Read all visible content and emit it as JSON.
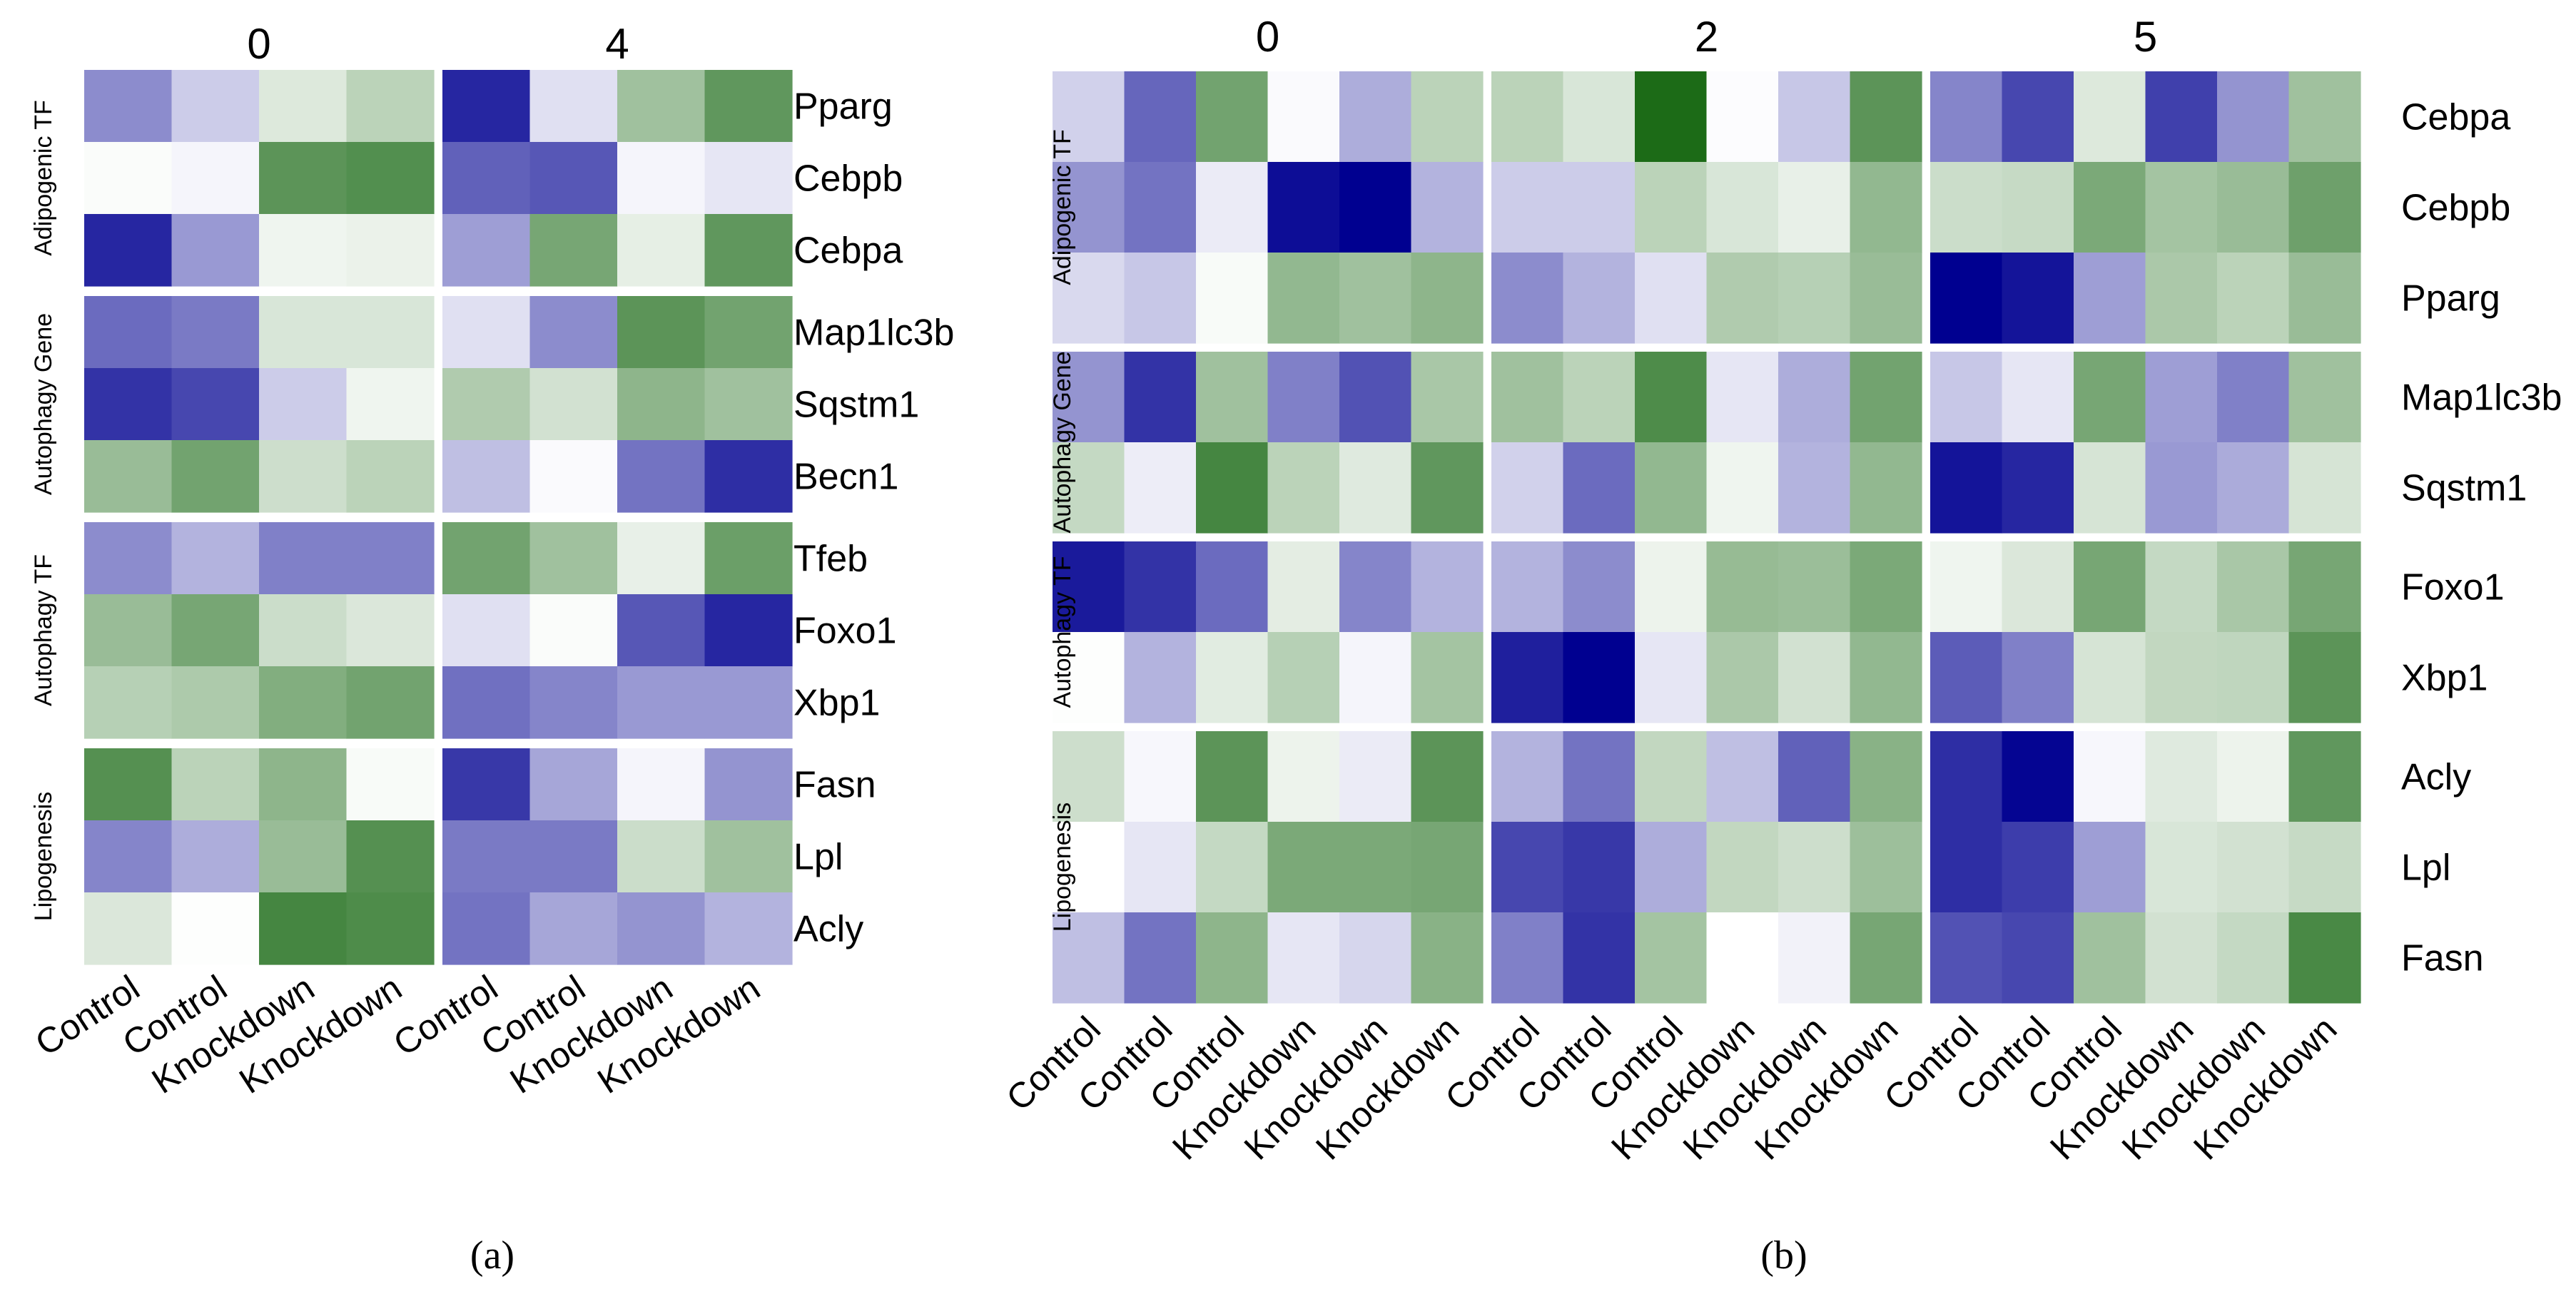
{
  "colors": {
    "low": "#000090",
    "mid": "#ffffff",
    "high": "#1c6b17",
    "separator": "#ffffff"
  },
  "chart_data": [
    {
      "type": "heatmap",
      "id": "a",
      "caption": "(a)",
      "title": "",
      "timepoints": [
        "0",
        "4"
      ],
      "columns": [
        "Control",
        "Control",
        "Knockdown",
        "Knockdown"
      ],
      "groups": [
        {
          "name": "Adipogenic TF",
          "genes": [
            "Pparg",
            "Cebpb",
            "Cebpa"
          ]
        },
        {
          "name": "Autophagy Gene",
          "genes": [
            "Map1lc3b",
            "Sqstm1",
            "Becn1"
          ]
        },
        {
          "name": "Autophagy TF",
          "genes": [
            "Tfeb",
            "Foxo1",
            "Xbp1"
          ]
        },
        {
          "name": "Lipogenesis",
          "genes": [
            "Fasn",
            "Lpl",
            "Acly"
          ]
        }
      ],
      "value_range": [
        -1,
        1
      ],
      "values": [
        [
          [
            -0.45,
            -0.2,
            0.15,
            0.3
          ],
          [
            -0.85,
            -0.12,
            0.42,
            0.7
          ]
        ],
        [
          [
            0.02,
            -0.04,
            0.72,
            0.76
          ],
          [
            -0.62,
            -0.66,
            -0.04,
            -0.1
          ]
        ],
        [
          [
            -0.85,
            -0.4,
            0.07,
            0.09
          ],
          [
            -0.38,
            0.6,
            0.11,
            0.7
          ]
        ],
        [
          [
            -0.58,
            -0.52,
            0.17,
            0.17
          ],
          [
            -0.12,
            -0.45,
            0.72,
            0.62
          ]
        ],
        [
          [
            -0.8,
            -0.72,
            -0.2,
            0.07
          ],
          [
            0.35,
            0.2,
            0.5,
            0.42
          ]
        ],
        [
          [
            0.45,
            0.62,
            0.22,
            0.3
          ],
          [
            -0.25,
            -0.02,
            -0.55,
            -0.82
          ]
        ],
        [
          [
            -0.45,
            -0.3,
            -0.5,
            -0.5
          ],
          [
            0.62,
            0.42,
            0.1,
            0.65
          ]
        ],
        [
          [
            0.45,
            0.6,
            0.23,
            0.16
          ],
          [
            -0.12,
            0.02,
            -0.66,
            -0.85
          ]
        ],
        [
          [
            0.32,
            0.36,
            0.55,
            0.62
          ],
          [
            -0.56,
            -0.48,
            -0.4,
            -0.4
          ]
        ],
        [
          [
            0.75,
            0.3,
            0.5,
            0.03
          ],
          [
            -0.78,
            -0.35,
            -0.04,
            -0.42
          ]
        ],
        [
          [
            -0.48,
            -0.32,
            0.45,
            0.75
          ],
          [
            -0.52,
            -0.52,
            0.23,
            0.42
          ]
        ],
        [
          [
            0.16,
            0.01,
            0.82,
            0.78
          ],
          [
            -0.55,
            -0.35,
            -0.42,
            -0.3
          ]
        ]
      ]
    },
    {
      "type": "heatmap",
      "id": "b",
      "caption": "(b)",
      "title": "",
      "timepoints": [
        "0",
        "2",
        "5"
      ],
      "columns": [
        "Control",
        "Control",
        "Control",
        "Knockdown",
        "Knockdown",
        "Knockdown"
      ],
      "groups": [
        {
          "name": "Adipogenic TF",
          "genes": [
            "Cebpa",
            "Cebpb",
            "Pparg"
          ]
        },
        {
          "name": "Autophagy Gene",
          "genes": [
            "Map1lc3b",
            "Sqstm1"
          ]
        },
        {
          "name": "Autophagy TF",
          "genes": [
            "Foxo1",
            "Xbp1"
          ]
        },
        {
          "name": "Lipogenesis",
          "genes": [
            "Acly",
            "Lpl",
            "Fasn"
          ]
        }
      ],
      "value_range": [
        -1,
        1
      ],
      "values": [
        [
          [
            -0.18,
            -0.6,
            0.62,
            -0.02,
            -0.32,
            0.3
          ],
          [
            0.3,
            0.17,
            1.0,
            -0.01,
            -0.22,
            0.72
          ],
          [
            -0.48,
            -0.72,
            0.15,
            -0.75,
            -0.42,
            0.42
          ]
        ],
        [
          [
            -0.42,
            -0.55,
            -0.08,
            -0.95,
            -1.0,
            -0.3
          ],
          [
            -0.2,
            -0.2,
            0.3,
            0.17,
            0.1,
            0.48
          ],
          [
            0.23,
            0.25,
            0.58,
            0.4,
            0.45,
            0.64
          ]
        ],
        [
          [
            -0.15,
            -0.22,
            0.03,
            0.48,
            0.42,
            0.5
          ],
          [
            -0.45,
            -0.3,
            -0.12,
            0.35,
            0.32,
            0.45
          ],
          [
            -1.0,
            -0.92,
            -0.38,
            0.37,
            0.3,
            0.45
          ]
        ],
        [
          [
            -0.42,
            -0.8,
            0.42,
            -0.5,
            -0.68,
            0.38
          ],
          [
            0.42,
            0.3,
            0.78,
            -0.1,
            -0.32,
            0.62
          ],
          [
            -0.22,
            -0.1,
            0.6,
            -0.38,
            -0.5,
            0.42
          ]
        ],
        [
          [
            0.26,
            -0.07,
            0.82,
            0.3,
            0.14,
            0.7
          ],
          [
            -0.18,
            -0.58,
            0.48,
            0.07,
            -0.3,
            0.48
          ],
          [
            -0.92,
            -0.85,
            0.18,
            -0.4,
            -0.33,
            0.18
          ]
        ],
        [
          [
            -0.9,
            -0.8,
            -0.58,
            0.12,
            -0.48,
            -0.3
          ],
          [
            -0.3,
            -0.45,
            0.08,
            0.46,
            0.44,
            0.58
          ],
          [
            0.07,
            0.16,
            0.6,
            0.26,
            0.38,
            0.6
          ]
        ],
        [
          [
            0.01,
            -0.3,
            0.13,
            0.32,
            -0.04,
            0.4
          ],
          [
            -0.88,
            -1.0,
            -0.1,
            0.37,
            0.2,
            0.48
          ],
          [
            -0.64,
            -0.5,
            0.18,
            0.27,
            0.28,
            0.72
          ]
        ],
        [
          [
            0.22,
            -0.03,
            0.72,
            0.08,
            -0.08,
            0.72
          ],
          [
            -0.3,
            -0.55,
            0.27,
            -0.25,
            -0.62,
            0.52
          ],
          [
            -0.82,
            -0.98,
            -0.03,
            0.14,
            0.08,
            0.7
          ]
        ],
        [
          [
            0.0,
            -0.1,
            0.26,
            0.58,
            0.58,
            0.6
          ],
          [
            -0.72,
            -0.78,
            -0.32,
            0.27,
            0.22,
            0.43
          ],
          [
            -0.82,
            -0.76,
            -0.38,
            0.17,
            0.2,
            0.25
          ]
        ],
        [
          [
            -0.25,
            -0.55,
            0.5,
            -0.1,
            -0.16,
            0.52
          ],
          [
            -0.5,
            -0.8,
            0.4,
            0.0,
            -0.05,
            0.6
          ],
          [
            -0.68,
            -0.72,
            0.42,
            0.2,
            0.26,
            0.8
          ]
        ]
      ]
    }
  ]
}
